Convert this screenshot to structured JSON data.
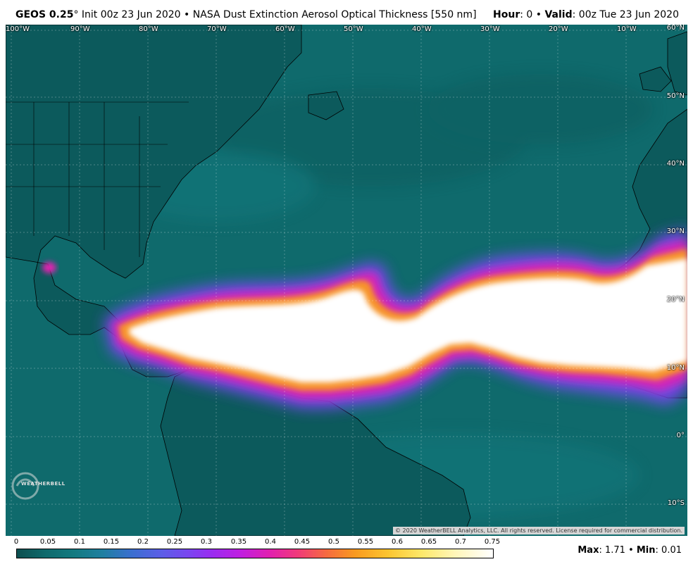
{
  "header": {
    "model": "GEOS 0.25",
    "degree": "°",
    "init": " Init 00z 23 Jun 2020",
    "bullet": " • ",
    "product": "NASA Dust Extinction Aerosol Optical Thickness [550 nm]",
    "hour_label": "Hour",
    "hour_value": ": 0",
    "valid_label": "Valid",
    "valid_value": ": 00z Tue 23 Jun 2020"
  },
  "map": {
    "lon_labels": [
      "100°W",
      "90°W",
      "80°W",
      "70°W",
      "60°W",
      "50°W",
      "40°W",
      "30°W",
      "20°W",
      "10°W"
    ],
    "lat_labels": [
      "60°N",
      "50°N",
      "40°N",
      "30°N",
      "20°N",
      "10°N",
      "0°",
      "10°S"
    ],
    "copyright": "© 2020 WeatherBELL Analytics, LLC. All rights reserved. License required for commercial distribution.",
    "logo_text": "WEATHERBELL",
    "colors": {
      "ocean_base": "#0f6a6c",
      "land": "#0c5a5c",
      "dust_low": "#7a46f0",
      "dust_high": "#ffffff"
    }
  },
  "legend": {
    "ticks": [
      "0",
      "0.05",
      "0.1",
      "0.15",
      "0.2",
      "0.25",
      "0.3",
      "0.35",
      "0.4",
      "0.45",
      "0.5",
      "0.55",
      "0.6",
      "0.65",
      "0.7",
      "0.75"
    ],
    "max_label": "Max",
    "max_value": ": 1.71",
    "bullet": " • ",
    "min_label": "Min",
    "min_value": ": 0.01"
  }
}
